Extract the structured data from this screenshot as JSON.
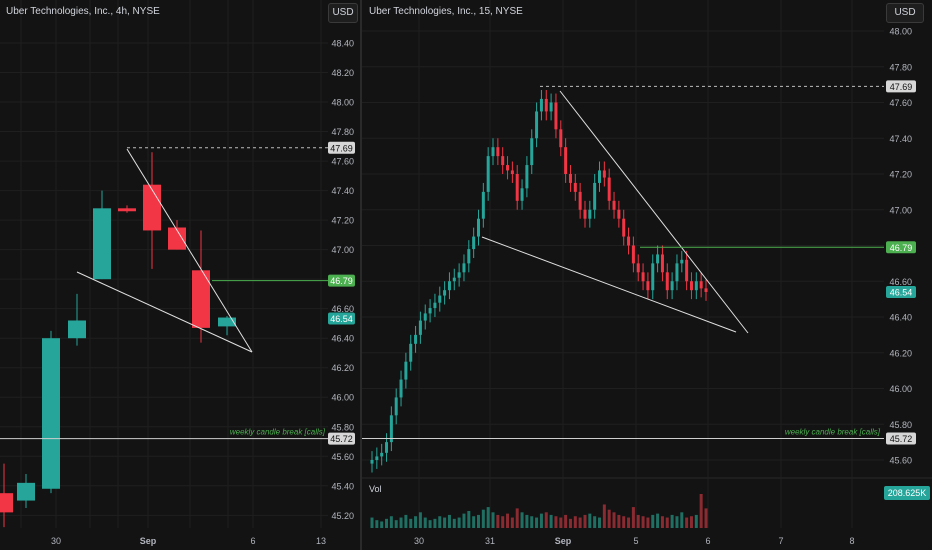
{
  "left_panel": {
    "title": "Uber Technologies, Inc., 4h, NYSE",
    "currency": "USD"
  },
  "right_panel": {
    "title": "Uber Technologies, Inc., 15, NYSE",
    "currency": "USD",
    "volume_label": "Vol",
    "volume_value": "208.625K"
  },
  "colors": {
    "up": "#26a69a",
    "down": "#f23645",
    "bg": "#131313",
    "grid": "#1f1f1f",
    "text": "#b2b5be",
    "green_line": "#4caf50"
  },
  "chart_data": [
    {
      "type": "candlestick",
      "title": "Uber Technologies, Inc., 4h, NYSE",
      "ylim": [
        45.1,
        48.6
      ],
      "y_ticks": [
        "48.40",
        "48.20",
        "48.00",
        "47.80",
        "47.60",
        "47.40",
        "47.20",
        "47.00",
        "46.80",
        "46.60",
        "46.40",
        "46.20",
        "46.00",
        "45.80",
        "45.60",
        "45.40",
        "45.20"
      ],
      "x_ticks": [
        "30",
        "Sep",
        "6",
        "13"
      ],
      "candles": [
        {
          "o": 45.35,
          "h": 45.55,
          "l": 45.12,
          "c": 45.22
        },
        {
          "o": 45.3,
          "h": 45.48,
          "l": 45.25,
          "c": 45.42
        },
        {
          "o": 45.38,
          "h": 46.45,
          "l": 45.35,
          "c": 46.4
        },
        {
          "o": 46.4,
          "h": 46.7,
          "l": 46.35,
          "c": 46.52
        },
        {
          "o": 46.8,
          "h": 47.4,
          "l": 46.8,
          "c": 47.28
        },
        {
          "o": 47.28,
          "h": 47.3,
          "l": 47.25,
          "c": 47.26
        },
        {
          "o": 47.44,
          "h": 47.66,
          "l": 46.87,
          "c": 47.13
        },
        {
          "o": 47.15,
          "h": 47.2,
          "l": 47.0,
          "c": 47.0
        },
        {
          "o": 46.86,
          "h": 47.13,
          "l": 46.37,
          "c": 46.47
        },
        {
          "o": 46.48,
          "h": 46.55,
          "l": 46.42,
          "c": 46.54
        }
      ],
      "annotations": {
        "dashed_level": "47.69",
        "green_level": "46.79",
        "last_price": "46.54",
        "support_level": "45.72",
        "support_text": "weekly candle break [calls]"
      }
    },
    {
      "type": "candlestick",
      "title": "Uber Technologies, Inc., 15, NYSE",
      "ylim": [
        45.5,
        48.1
      ],
      "y_ticks": [
        "48.00",
        "47.80",
        "47.60",
        "47.40",
        "47.20",
        "47.00",
        "46.80",
        "46.60",
        "46.40",
        "46.20",
        "46.00",
        "45.80",
        "45.60"
      ],
      "x_ticks": [
        "30",
        "31",
        "Sep",
        "5",
        "6",
        "7",
        "8"
      ],
      "close_path": [
        45.6,
        45.62,
        45.64,
        45.7,
        45.85,
        45.95,
        46.05,
        46.15,
        46.25,
        46.3,
        46.38,
        46.42,
        46.45,
        46.48,
        46.52,
        46.55,
        46.6,
        46.62,
        46.65,
        46.7,
        46.78,
        46.85,
        46.95,
        47.1,
        47.3,
        47.35,
        47.3,
        47.25,
        47.22,
        47.2,
        47.05,
        47.12,
        47.25,
        47.4,
        47.55,
        47.62,
        47.55,
        47.6,
        47.45,
        47.35,
        47.2,
        47.15,
        47.1,
        47.0,
        46.95,
        47.0,
        47.15,
        47.22,
        47.18,
        47.05,
        47.0,
        46.95,
        46.85,
        46.8,
        46.7,
        46.65,
        46.6,
        46.55,
        46.7,
        46.75,
        46.65,
        46.55,
        46.6,
        46.7,
        46.72,
        46.6,
        46.55,
        46.6,
        46.56,
        46.54
      ],
      "volume_bars": [
        8,
        6,
        5,
        7,
        9,
        6,
        8,
        10,
        7,
        9,
        12,
        8,
        6,
        7,
        9,
        8,
        10,
        7,
        8,
        11,
        13,
        9,
        10,
        14,
        16,
        12,
        10,
        9,
        11,
        8,
        15,
        12,
        10,
        9,
        8,
        11,
        12,
        10,
        9,
        8,
        10,
        7,
        9,
        8,
        10,
        11,
        9,
        8,
        18,
        14,
        12,
        10,
        9,
        8,
        16,
        10,
        9,
        8,
        10,
        11,
        9,
        8,
        10,
        9,
        12,
        8,
        9,
        10,
        26,
        15
      ],
      "annotations": {
        "dashed_level": "47.69",
        "green_level": "46.79",
        "last_price": "46.54",
        "support_level": "45.72",
        "support_text": "weekly candle break [calls]"
      }
    }
  ]
}
